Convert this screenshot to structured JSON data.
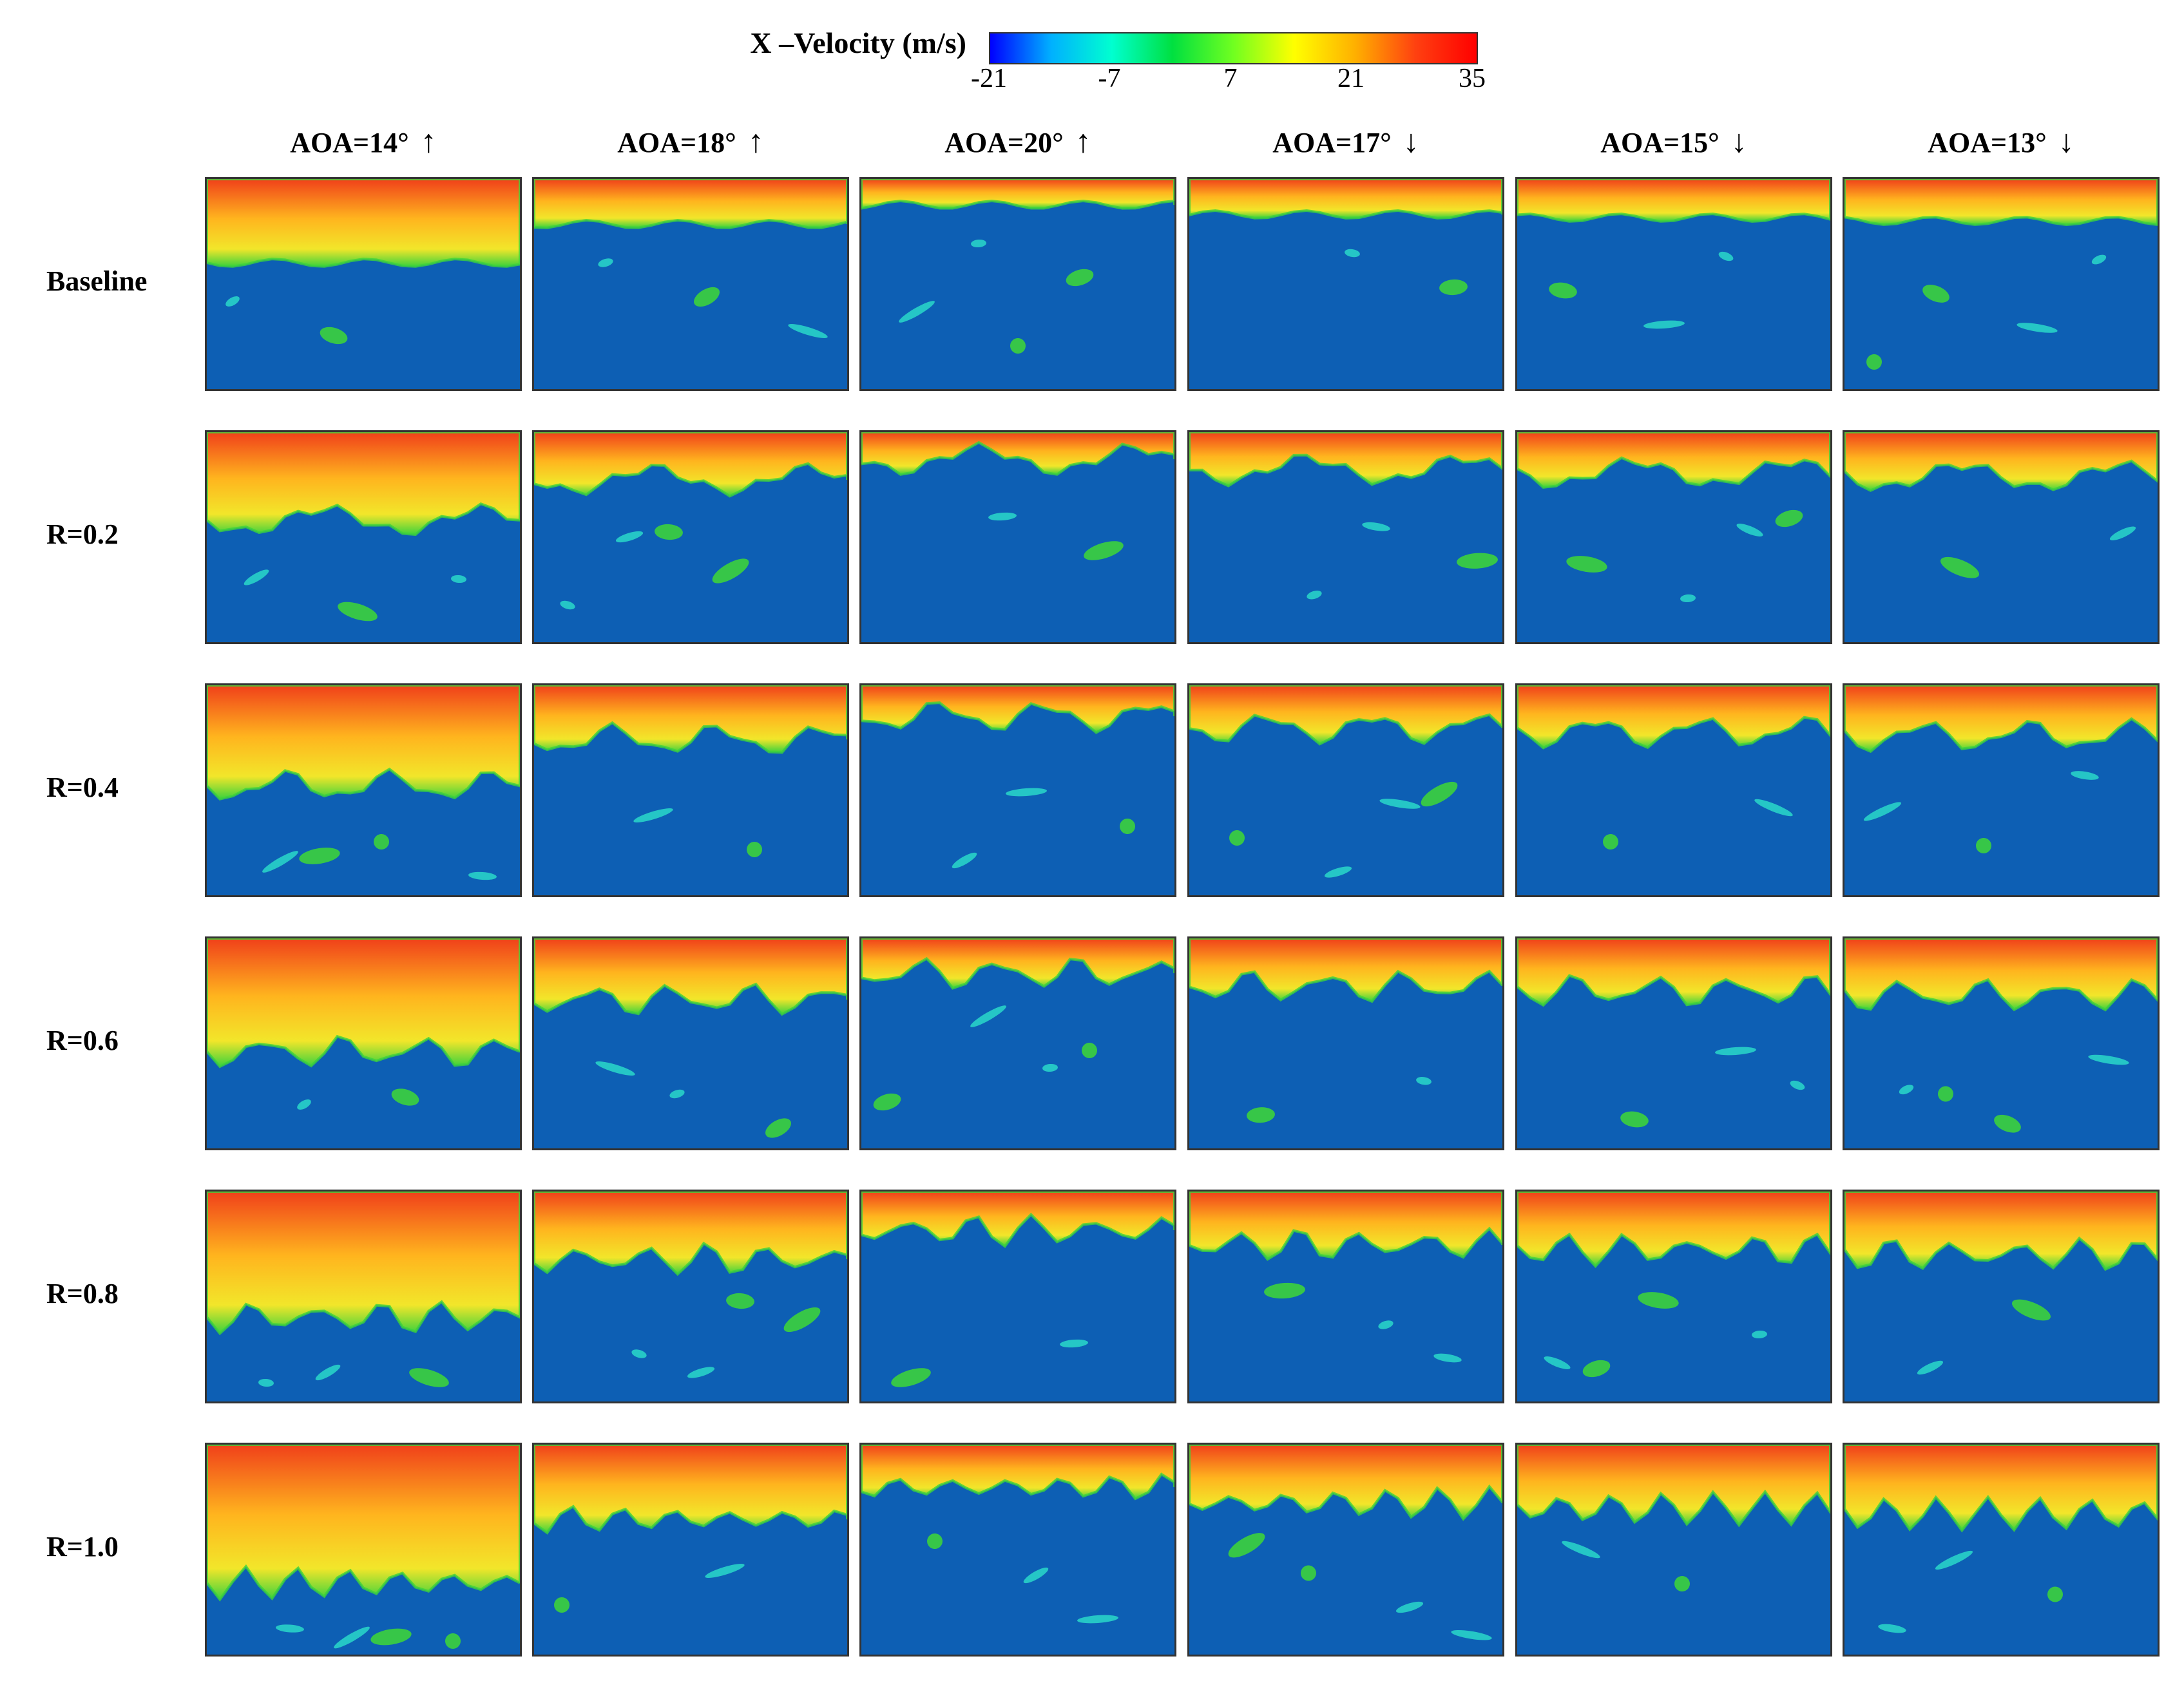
{
  "legend": {
    "title": "X –Velocity (m/s)",
    "ticks": [
      "-21",
      "-7",
      "7",
      "21",
      "35"
    ],
    "colorscale": [
      "#0000ff",
      "#00b0ff",
      "#00ffd0",
      "#00e040",
      "#70ff20",
      "#ffff00",
      "#ffb000",
      "#ff4010",
      "#ff0000"
    ]
  },
  "columns": [
    {
      "label": "AOA=14°",
      "arrow": "↑"
    },
    {
      "label": "AOA=18°",
      "arrow": "↑"
    },
    {
      "label": "AOA=20°",
      "arrow": "↑"
    },
    {
      "label": "AOA=17°",
      "arrow": "↓"
    },
    {
      "label": "AOA=15°",
      "arrow": "↓"
    },
    {
      "label": "AOA=13°",
      "arrow": "↓"
    }
  ],
  "rows": [
    {
      "label": "Baseline"
    },
    {
      "label": "R=0.2"
    },
    {
      "label": "R=0.4"
    },
    {
      "label": "R=0.6"
    },
    {
      "label": "R=0.8"
    },
    {
      "label": "R=1.0"
    }
  ],
  "colors": {
    "background_flow": "#0d5fb4",
    "hot": "#f0401a",
    "warm": "#ffb41e",
    "yellow": "#f2e62a",
    "green": "#3cd23c",
    "cyan": "#28d2c8"
  }
}
